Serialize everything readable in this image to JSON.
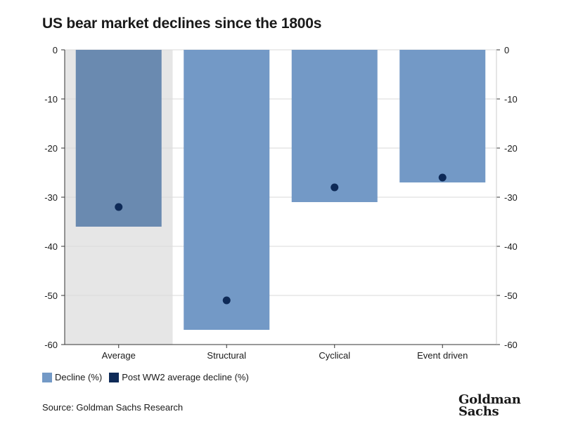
{
  "title": "US bear market declines since the 1800s",
  "colors": {
    "decline": "#7399c6",
    "decline_highlight": "#6a8ab0",
    "post_ww2": "#0e2a57",
    "highlight_bg": "#e6e6e6",
    "grid": "#d9d9d9"
  },
  "chart_data": {
    "type": "bar",
    "categories": [
      "Average",
      "Structural",
      "Cyclical",
      "Event driven"
    ],
    "series": [
      {
        "name": "Decline (%)",
        "type": "bar",
        "values": [
          -36,
          -57,
          -31,
          -27
        ]
      },
      {
        "name": "Post WW2 average decline (%)",
        "type": "scatter",
        "values": [
          -32,
          -51,
          -28,
          -26
        ]
      }
    ],
    "highlighted_category": "Average",
    "ylim": [
      -60,
      0
    ],
    "yticks": [
      0,
      -10,
      -20,
      -30,
      -40,
      -50,
      -60
    ],
    "ytick_labels": [
      "0",
      "-10",
      "-20",
      "-30",
      "-40",
      "-50",
      "-60"
    ],
    "secondary_y_axis": true,
    "grid": true,
    "legend_position": "bottom-left"
  },
  "legend": {
    "items": [
      {
        "label": "Decline (%)",
        "color": "#7399c6"
      },
      {
        "label": "Post WW2 average decline (%)",
        "color": "#0e2a57"
      }
    ]
  },
  "footer": {
    "source": "Source: Goldman Sachs Research",
    "logo_line1": "Goldman",
    "logo_line2": "Sachs"
  }
}
